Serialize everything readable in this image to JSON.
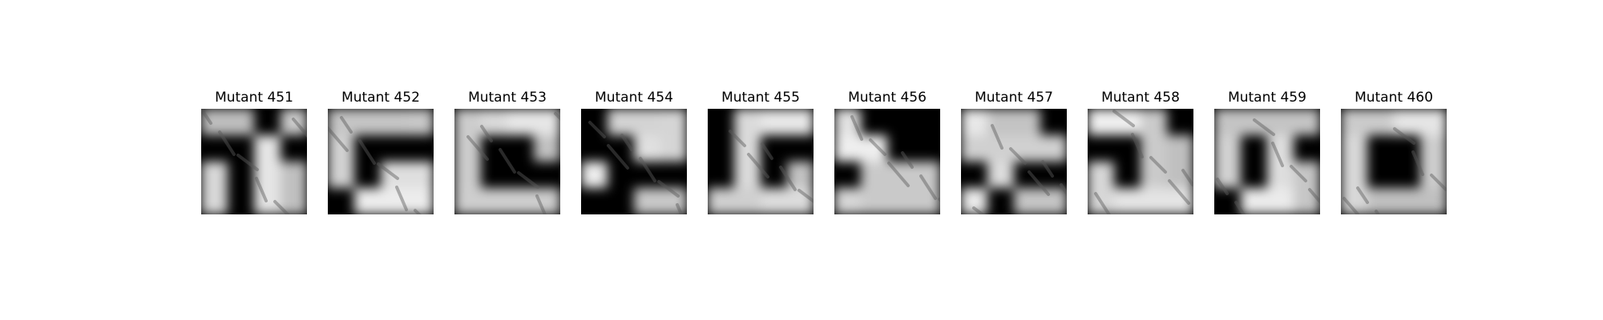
{
  "figure": {
    "panels": [
      {
        "title": "Mutant 451",
        "icon": "grayscale-mask-image"
      },
      {
        "title": "Mutant 452",
        "icon": "grayscale-mask-image"
      },
      {
        "title": "Mutant 453",
        "icon": "grayscale-mask-image"
      },
      {
        "title": "Mutant 454",
        "icon": "grayscale-mask-image"
      },
      {
        "title": "Mutant 455",
        "icon": "grayscale-mask-image"
      },
      {
        "title": "Mutant 456",
        "icon": "grayscale-mask-image"
      },
      {
        "title": "Mutant 457",
        "icon": "grayscale-mask-image"
      },
      {
        "title": "Mutant 458",
        "icon": "grayscale-mask-image"
      },
      {
        "title": "Mutant 459",
        "icon": "grayscale-mask-image"
      },
      {
        "title": "Mutant 460",
        "icon": "grayscale-mask-image"
      }
    ]
  }
}
